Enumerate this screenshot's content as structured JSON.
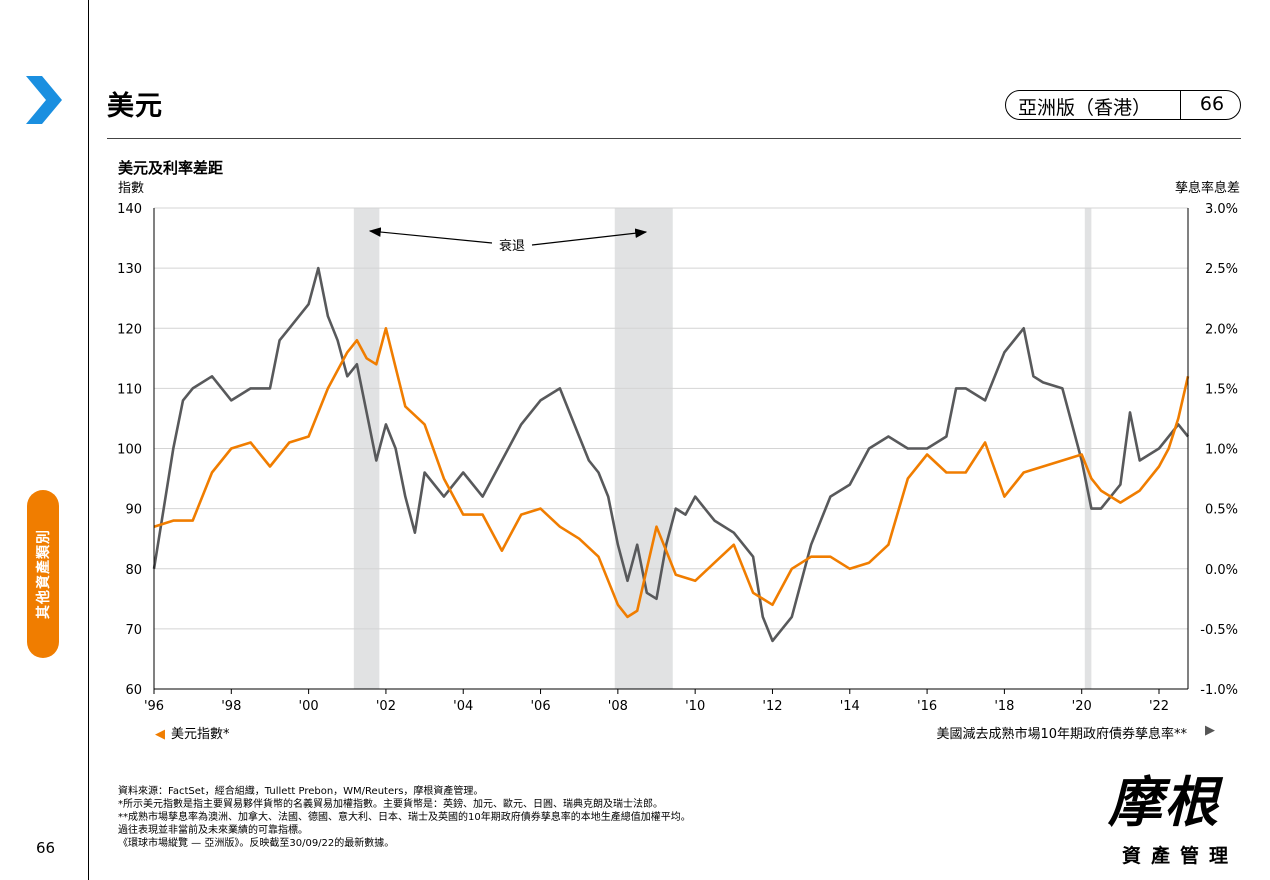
{
  "header": {
    "title": "美元",
    "edition": "亞洲版（香港）",
    "page_badge": "66"
  },
  "side_tab": {
    "label": "其他資產類別"
  },
  "page_number": "66",
  "colors": {
    "usd": "#f07d00",
    "diff": "#58595b",
    "recession": "#e1e2e3",
    "accent": "#1a8fe0"
  },
  "chart_data": {
    "type": "line",
    "title": "美元及利率差距",
    "ylabel_left": "指數",
    "ylabel_right": "孳息率息差",
    "annotation": "衰退",
    "x_tick_labels": [
      "'96",
      "'98",
      "'00",
      "'02",
      "'04",
      "'06",
      "'08",
      "'10",
      "'12",
      "'14",
      "'16",
      "'18",
      "'20",
      "'22"
    ],
    "x_ticks": [
      1996,
      1998,
      2000,
      2002,
      2004,
      2006,
      2008,
      2010,
      2012,
      2014,
      2016,
      2018,
      2020,
      2022
    ],
    "xlim": [
      1996,
      2022.75
    ],
    "ylim_left": [
      60,
      140
    ],
    "ylim_right": [
      -1.0,
      3.0
    ],
    "y_ticks_left": [
      60,
      70,
      80,
      90,
      100,
      110,
      120,
      130,
      140
    ],
    "y_ticks_right": [
      -1.0,
      -0.5,
      0.0,
      0.5,
      1.0,
      1.5,
      2.0,
      2.5,
      3.0
    ],
    "y_tick_labels_left": [
      "60",
      "70",
      "80",
      "90",
      "100",
      "110",
      "120",
      "130",
      "140"
    ],
    "y_tick_labels_right": [
      "-1.0%",
      "-0.5%",
      "0.0%",
      "0.5%",
      "1.0%",
      "1.5%",
      "2.0%",
      "2.5%",
      "3.0%"
    ],
    "recessions": [
      [
        2001.17,
        2001.83
      ],
      [
        2007.92,
        2009.42
      ],
      [
        2020.08,
        2020.25
      ]
    ],
    "series": [
      {
        "name": "美元指數*",
        "axis": "left",
        "x": [
          1996,
          1996.5,
          1997,
          1997.5,
          1998,
          1998.5,
          1999,
          1999.5,
          2000,
          2000.5,
          2001,
          2001.25,
          2001.5,
          2001.75,
          2002,
          2002.5,
          2003,
          2003.5,
          2004,
          2004.5,
          2005,
          2005.5,
          2006,
          2006.5,
          2007,
          2007.5,
          2008,
          2008.25,
          2008.5,
          2008.75,
          2009,
          2009.25,
          2009.5,
          2010,
          2010.5,
          2011,
          2011.5,
          2012,
          2012.5,
          2013,
          2013.5,
          2014,
          2014.5,
          2015,
          2015.5,
          2016,
          2016.5,
          2017,
          2017.5,
          2018,
          2018.5,
          2019,
          2019.5,
          2020,
          2020.25,
          2020.5,
          2021,
          2021.5,
          2022,
          2022.25,
          2022.5,
          2022.75
        ],
        "values": [
          87,
          88,
          88,
          96,
          100,
          101,
          97,
          101,
          102,
          110,
          116,
          118,
          115,
          114,
          120,
          107,
          104,
          95,
          89,
          89,
          83,
          89,
          90,
          87,
          85,
          82,
          74,
          72,
          73,
          80,
          87,
          83,
          79,
          78,
          81,
          84,
          76,
          74,
          80,
          82,
          82,
          80,
          81,
          84,
          95,
          99,
          96,
          96,
          101,
          92,
          96,
          97,
          98,
          99,
          95,
          93,
          91,
          93,
          97,
          100,
          105,
          112
        ]
      },
      {
        "name": "美國減去成熟市場10年期政府債券孳息率**",
        "axis": "right",
        "x": [
          1996,
          1996.25,
          1996.5,
          1996.75,
          1997,
          1997.5,
          1998,
          1998.5,
          1999,
          1999.25,
          1999.5,
          2000,
          2000.25,
          2000.5,
          2000.75,
          2001,
          2001.25,
          2001.5,
          2001.75,
          2002,
          2002.25,
          2002.5,
          2002.75,
          2003,
          2003.5,
          2004,
          2004.5,
          2005,
          2005.5,
          2006,
          2006.5,
          2007,
          2007.25,
          2007.5,
          2007.75,
          2008,
          2008.25,
          2008.5,
          2008.75,
          2009,
          2009.25,
          2009.5,
          2009.75,
          2010,
          2010.5,
          2011,
          2011.5,
          2011.75,
          2012,
          2012.5,
          2013,
          2013.5,
          2014,
          2014.5,
          2015,
          2015.5,
          2016,
          2016.5,
          2016.75,
          2017,
          2017.5,
          2018,
          2018.5,
          2018.75,
          2019,
          2019.5,
          2020,
          2020.25,
          2020.5,
          2021,
          2021.25,
          2021.5,
          2022,
          2022.25,
          2022.5,
          2022.75
        ],
        "values": [
          0.0,
          0.5,
          1.0,
          1.4,
          1.5,
          1.6,
          1.4,
          1.5,
          1.5,
          1.9,
          2.0,
          2.2,
          2.5,
          2.1,
          1.9,
          1.6,
          1.7,
          1.3,
          0.9,
          1.2,
          1.0,
          0.6,
          0.3,
          0.8,
          0.6,
          0.8,
          0.6,
          0.9,
          1.2,
          1.4,
          1.5,
          1.1,
          0.9,
          0.8,
          0.6,
          0.2,
          -0.1,
          0.2,
          -0.2,
          -0.25,
          0.2,
          0.5,
          0.45,
          0.6,
          0.4,
          0.3,
          0.1,
          -0.4,
          -0.6,
          -0.4,
          0.2,
          0.6,
          0.7,
          1.0,
          1.1,
          1.0,
          1.0,
          1.1,
          1.5,
          1.5,
          1.4,
          1.8,
          2.0,
          1.6,
          1.55,
          1.5,
          0.9,
          0.5,
          0.5,
          0.7,
          1.3,
          0.9,
          1.0,
          1.1,
          1.2,
          1.1
        ]
      }
    ]
  },
  "legend": {
    "left": "美元指數*",
    "right": "美國減去成熟市場10年期政府債券孳息率**"
  },
  "notes": [
    "資料來源：FactSet，經合組織，Tullett Prebon，WM/Reuters，摩根資產管理。",
    "*所示美元指數是指主要貿易夥伴貨幣的名義貿易加權指數。主要貨幣是：英鎊、加元、歐元、日圓、瑞典克朗及瑞士法郎。",
    "**成熟市場孳息率為澳洲、加拿大、法國、德國、意大利、日本、瑞士及英國的10年期政府債券孳息率的本地生產總值加權平均。",
    "過往表現並非當前及未來業績的可靠指標。",
    "《環球市場縱覽 — 亞洲版》。反映截至30/09/22的最新數據。"
  ],
  "logo": {
    "main": "摩根",
    "sub": "資產管理"
  }
}
